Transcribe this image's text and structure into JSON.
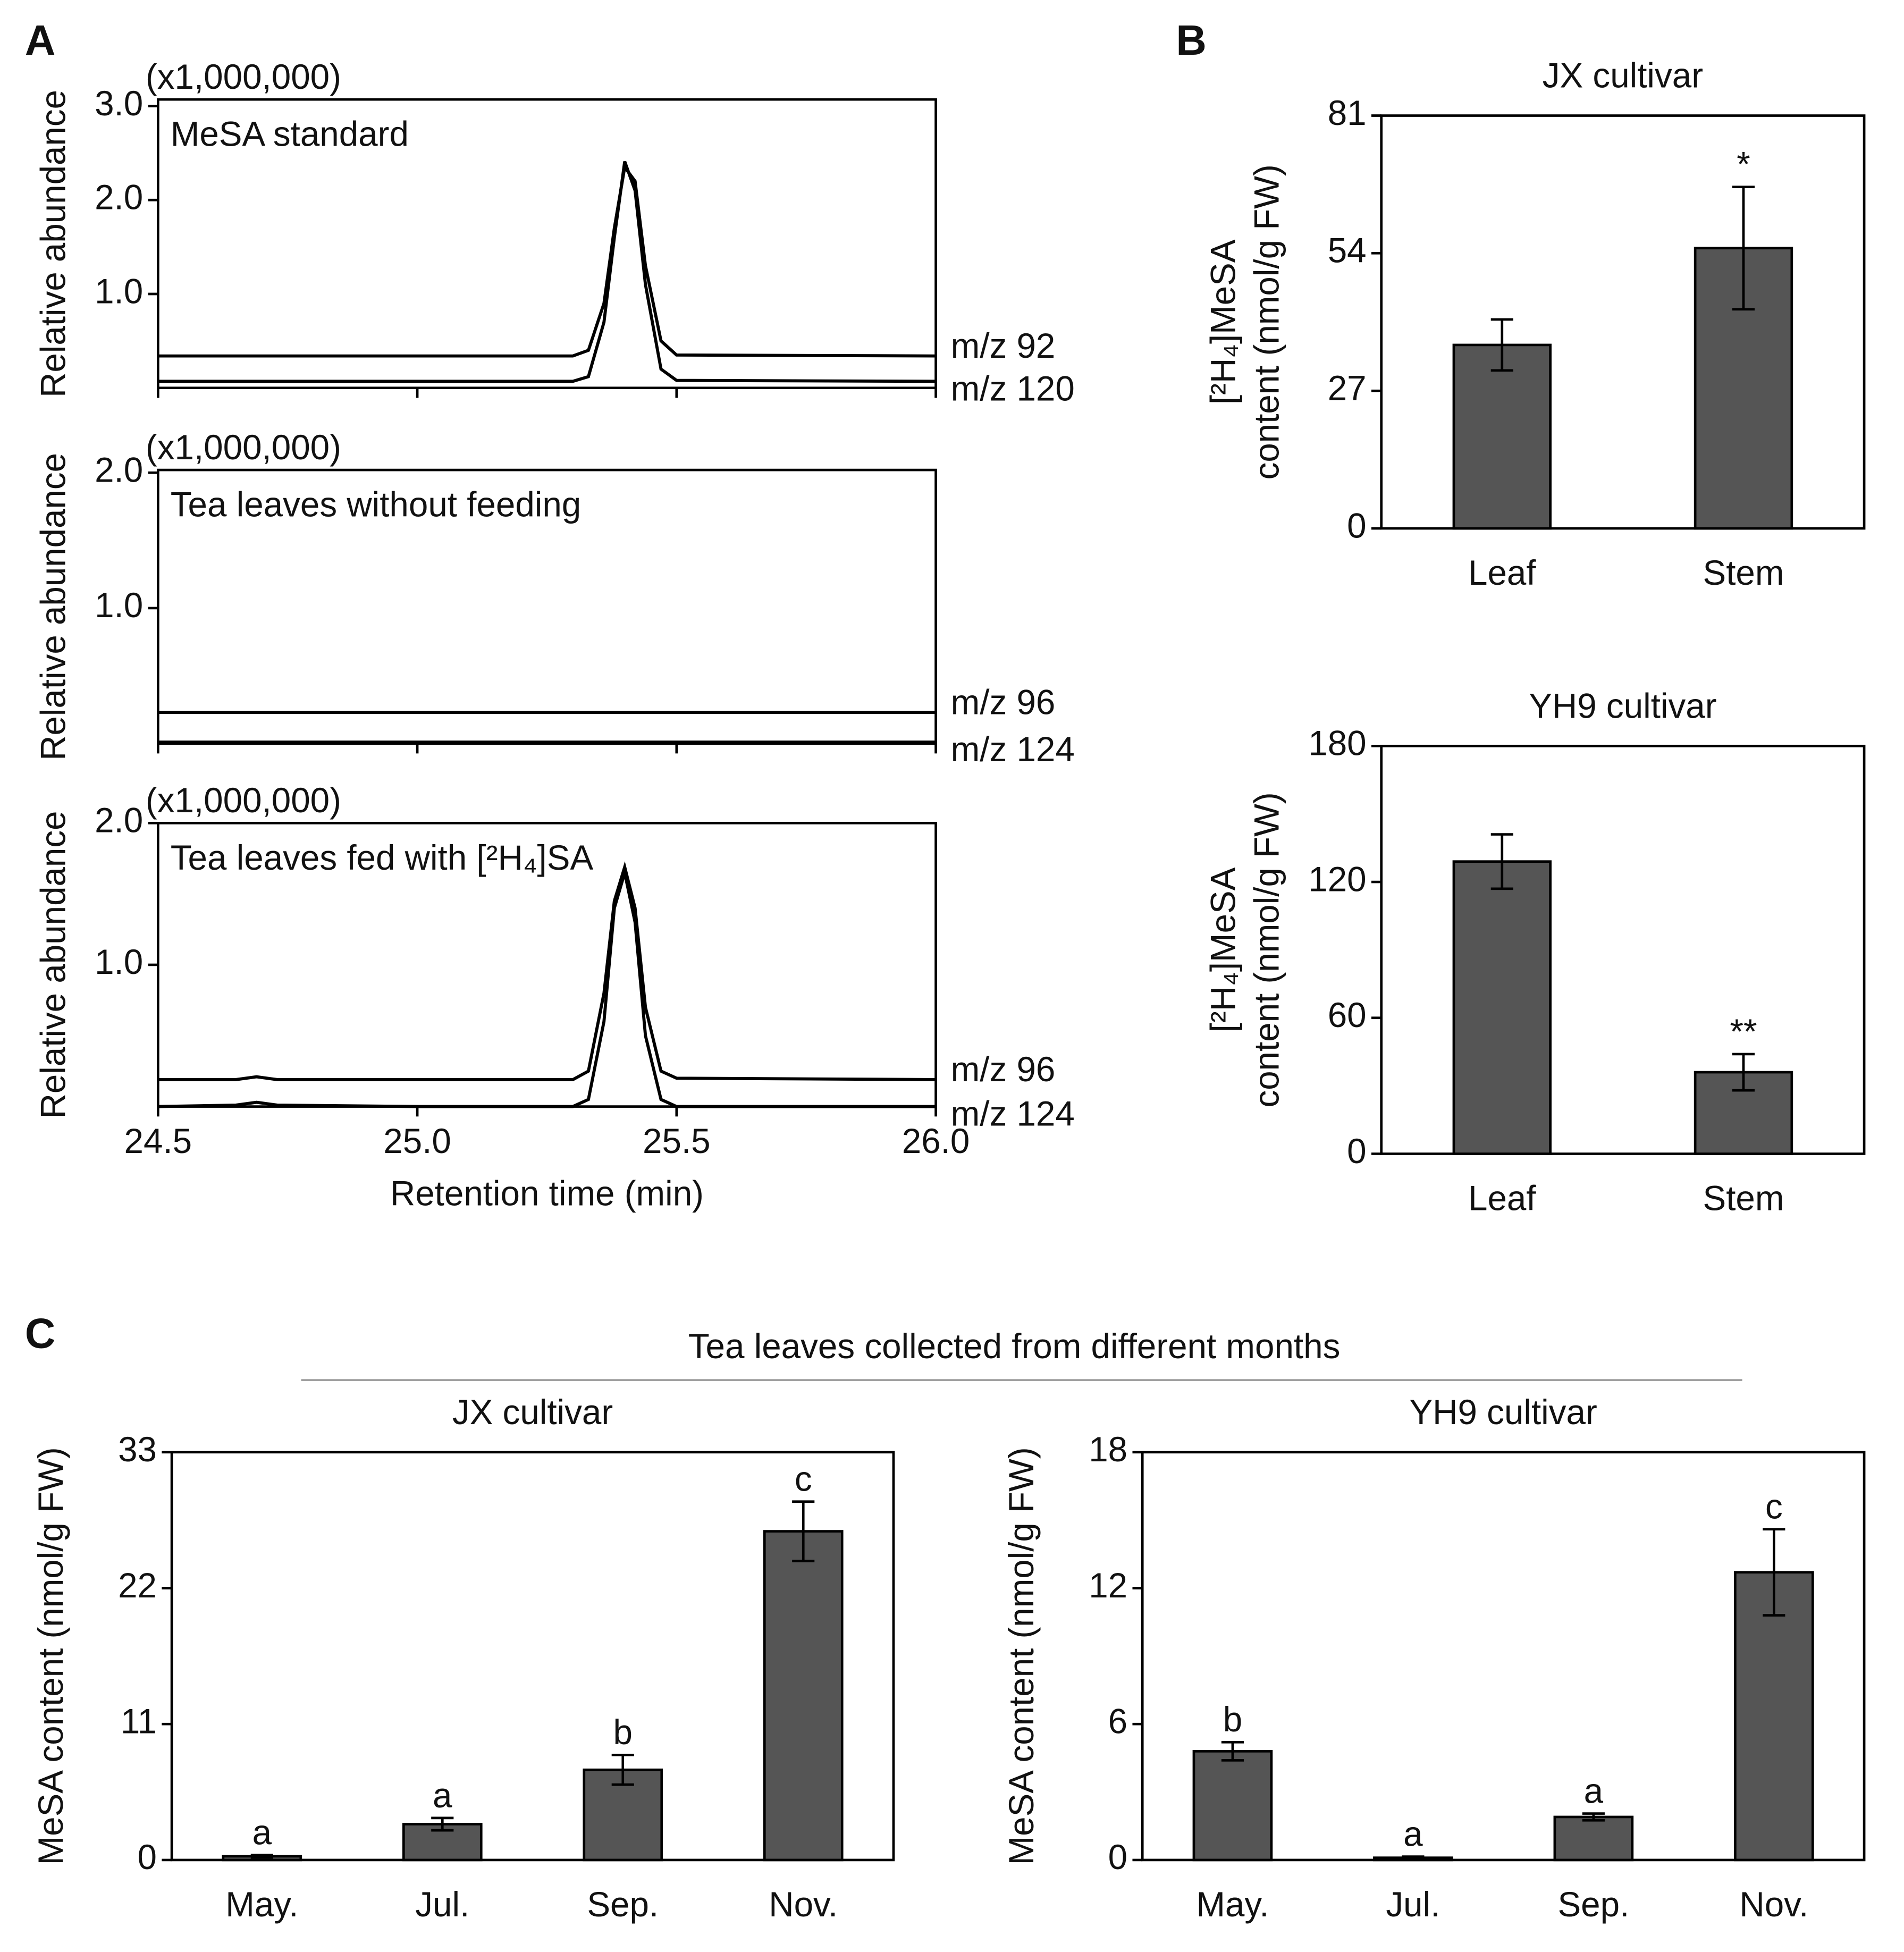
{
  "panel_labels": [
    "A",
    "B",
    "C"
  ],
  "group_title": "Tea leaves collected from different months",
  "chart_data": [
    {
      "type": "line",
      "unit_label": "(x1,000,000)",
      "annotation": "MeSA standard",
      "ylabel": "Relative abundance",
      "xlim": [
        24.5,
        26.0
      ],
      "ylim": [
        0,
        3.07
      ],
      "yticks": [
        {
          "value": 1,
          "label": "1.0"
        },
        {
          "value": 2,
          "label": "2.0"
        },
        {
          "value": 3,
          "label": "3.0"
        }
      ],
      "x": [
        24.5,
        24.65,
        24.69,
        24.73,
        25.0,
        25.3,
        25.33,
        25.36,
        25.38,
        25.4,
        25.42,
        25.44,
        25.47,
        25.5,
        26.0
      ],
      "series": [
        {
          "name": "m/z 92",
          "color": "#000000",
          "values": [
            0.34,
            0.34,
            0.34,
            0.34,
            0.34,
            0.34,
            0.4,
            0.9,
            1.7,
            2.35,
            2.2,
            1.3,
            0.5,
            0.35,
            0.34
          ]
        },
        {
          "name": "m/z 120",
          "color": "#000000",
          "values": [
            0.07,
            0.07,
            0.07,
            0.07,
            0.07,
            0.07,
            0.12,
            0.7,
            1.6,
            2.41,
            2.1,
            1.1,
            0.2,
            0.08,
            0.07
          ]
        }
      ]
    },
    {
      "type": "line",
      "unit_label": "(x1,000,000)",
      "annotation": "Tea leaves without feeding",
      "ylabel": "Relative abundance",
      "xlim": [
        24.5,
        26.0
      ],
      "ylim": [
        0,
        2.02
      ],
      "yticks": [
        {
          "value": 1,
          "label": "1.0"
        },
        {
          "value": 2,
          "label": "2.0"
        }
      ],
      "x": [
        24.5,
        26.0
      ],
      "series": [
        {
          "name": "m/z 96",
          "color": "#000000",
          "values": [
            0.23,
            0.23
          ]
        },
        {
          "name": "m/z 124",
          "color": "#000000",
          "values": [
            0.01,
            0.01
          ]
        }
      ]
    },
    {
      "type": "line",
      "unit_label": "(x1,000,000)",
      "annotation": "Tea leaves fed with [²H₄]SA",
      "ylabel": "Relative abundance",
      "xlabel": "Retention time (min)",
      "xlim": [
        24.5,
        26.0
      ],
      "ylim": [
        0,
        2.0
      ],
      "xticks": [
        24.5,
        {
          "value": 25,
          "label": "25.0"
        },
        25.5,
        {
          "value": 26,
          "label": "26.0"
        }
      ],
      "yticks": [
        {
          "value": 1,
          "label": "1.0"
        },
        {
          "value": 2,
          "label": "2.0"
        }
      ],
      "x": [
        24.5,
        24.65,
        24.69,
        24.73,
        25.0,
        25.3,
        25.33,
        25.36,
        25.38,
        25.4,
        25.42,
        25.44,
        25.47,
        25.5,
        26.0
      ],
      "series": [
        {
          "name": "m/z 96",
          "color": "#000000",
          "values": [
            0.19,
            0.19,
            0.21,
            0.19,
            0.19,
            0.19,
            0.25,
            0.8,
            1.45,
            1.69,
            1.4,
            0.7,
            0.25,
            0.2,
            0.19
          ]
        },
        {
          "name": "m/z 124",
          "color": "#000000",
          "values": [
            0,
            0.01,
            0.03,
            0.01,
            0,
            0,
            0.05,
            0.6,
            1.4,
            1.65,
            1.3,
            0.5,
            0.05,
            0,
            0
          ]
        }
      ]
    },
    {
      "type": "bar",
      "title": "JX cultivar",
      "ylabel": [
        "[²H₄]MeSA",
        "content (nmol/g FW)"
      ],
      "categories": [
        "Leaf",
        "Stem"
      ],
      "values": [
        36,
        55
      ],
      "errors": [
        5,
        12
      ],
      "annotations": [
        null,
        "*"
      ],
      "ylim": [
        0,
        81
      ],
      "yticks": [
        0,
        27,
        54,
        81
      ],
      "color": "#555555"
    },
    {
      "type": "bar",
      "title": "YH9 cultivar",
      "ylabel": [
        "[²H₄]MeSA",
        "content (nmol/g FW)"
      ],
      "categories": [
        "Leaf",
        "Stem"
      ],
      "values": [
        129,
        36
      ],
      "errors": [
        12,
        8
      ],
      "annotations": [
        null,
        "**"
      ],
      "ylim": [
        0,
        180
      ],
      "yticks": [
        0,
        60,
        120,
        180
      ],
      "color": "#555555"
    },
    {
      "type": "bar",
      "title": "JX cultivar",
      "ylabel": [
        "MeSA content (nmol/g FW)"
      ],
      "categories": [
        "May.",
        "Jul.",
        "Sep.",
        "Nov."
      ],
      "values": [
        0.3,
        2.9,
        7.3,
        26.6
      ],
      "errors": [
        0.1,
        0.5,
        1.2,
        2.4
      ],
      "annotations": [
        "a",
        "a",
        "b",
        "c"
      ],
      "ylim": [
        0,
        33
      ],
      "yticks": [
        0,
        11,
        22,
        33
      ],
      "color": "#555555"
    },
    {
      "type": "bar",
      "title": "YH9 cultivar",
      "ylabel": [
        "MeSA content (nmol/g FW)"
      ],
      "categories": [
        "May.",
        "Jul.",
        "Sep.",
        "Nov."
      ],
      "values": [
        4.8,
        0.1,
        1.9,
        12.7
      ],
      "errors": [
        0.4,
        0.05,
        0.15,
        1.9
      ],
      "annotations": [
        "b",
        "a",
        "a",
        "c"
      ],
      "ylim": [
        0,
        18
      ],
      "yticks": [
        0,
        6,
        12,
        18
      ],
      "color": "#555555"
    }
  ]
}
